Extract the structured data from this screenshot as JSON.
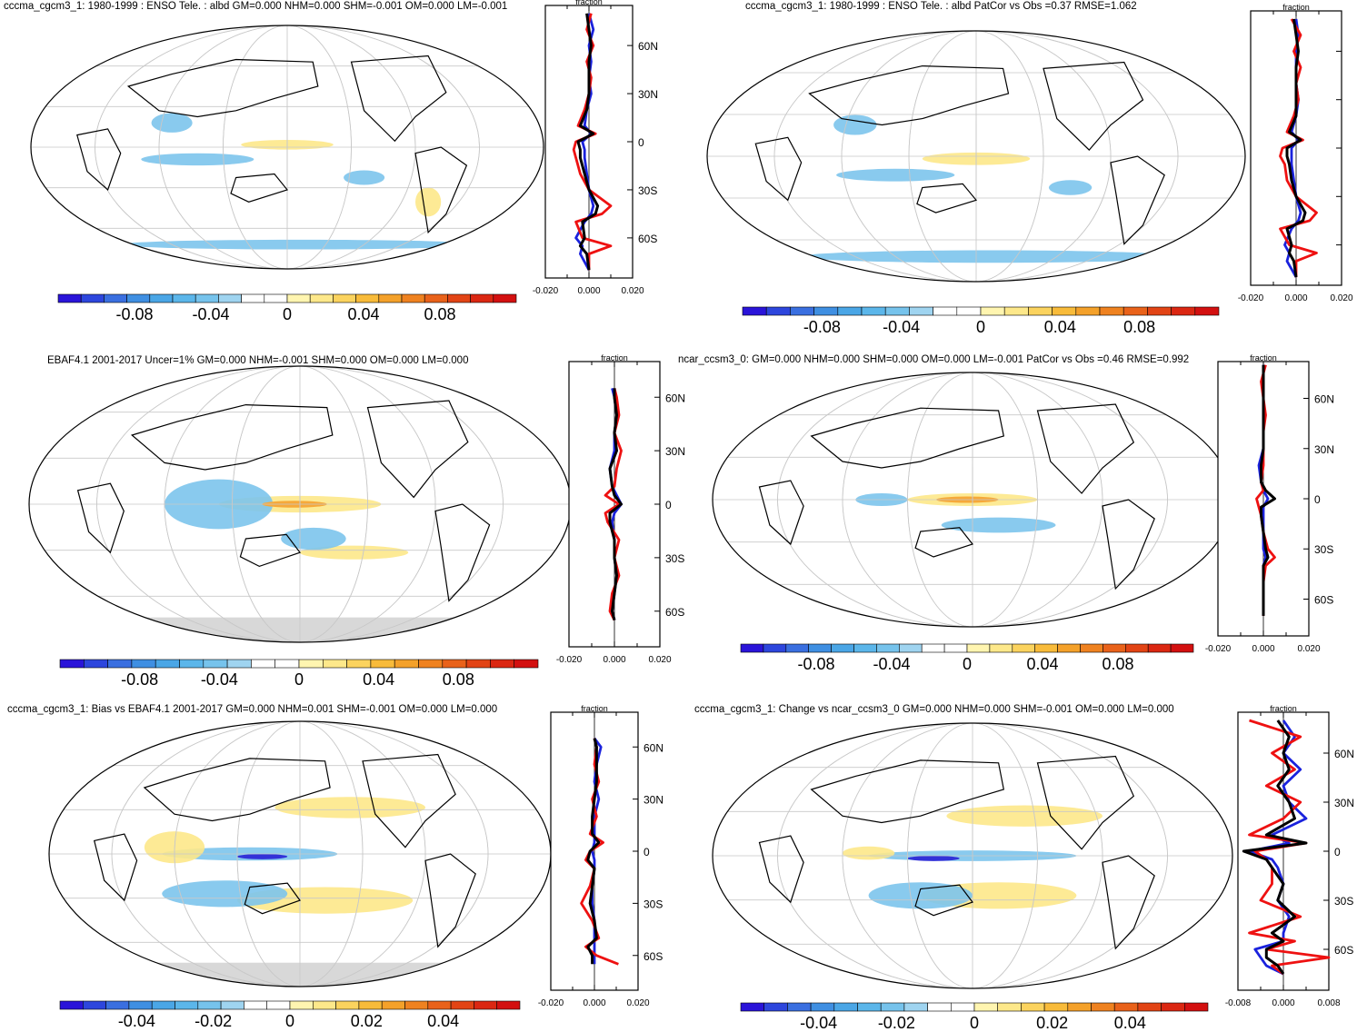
{
  "figure": {
    "panels": [
      {
        "id": "p1",
        "title": "cccma_cgcm3_1: 1980-1999 : ENSO Tele. : albd GM=0.000 NHM=0.000 SHM=-0.001 OM=0.000 LM=-0.001",
        "colorbar_ticks": [
          "-0.08",
          "-0.04",
          "0",
          "0.04",
          "0.08"
        ],
        "profile": {
          "xlabel_top": "fraction",
          "xticks": [
            "-0.020",
            "0.000",
            "0.020"
          ],
          "xrange": [
            -0.02,
            0.02
          ],
          "yticks": [
            "60N",
            "30N",
            "0",
            "30S",
            "60S"
          ]
        }
      },
      {
        "id": "p2",
        "title": "cccma_cgcm3_1: 1980-1999 : ENSO Tele. : albd PatCor vs Obs =0.37 RMSE=1.062",
        "colorbar_ticks": [
          "-0.08",
          "-0.04",
          "0",
          "0.04",
          "0.08"
        ],
        "profile": {
          "xlabel_top": "fraction",
          "xticks": [
            "-0.020",
            "0.000",
            "0.020"
          ],
          "xrange": [
            -0.02,
            0.02
          ],
          "yticks": [
            "",
            "",
            "",
            "",
            ""
          ]
        }
      },
      {
        "id": "p3",
        "title": "EBAF4.1 2001-2017 Uncer=1% GM=0.000 NHM=-0.001 SHM=0.000 OM=0.000 LM=0.000",
        "colorbar_ticks": [
          "-0.08",
          "-0.04",
          "0",
          "0.04",
          "0.08"
        ],
        "profile": {
          "xlabel_top": "fraction",
          "xticks": [
            "-0.020",
            "0.000",
            "0.020"
          ],
          "xrange": [
            -0.02,
            0.02
          ],
          "yticks": [
            "60N",
            "30N",
            "0",
            "30S",
            "60S"
          ]
        }
      },
      {
        "id": "p4",
        "title": "ncar_ccsm3_0: GM=0.000 NHM=0.000 SHM=0.000 OM=0.000 LM=-0.001 PatCor vs Obs =0.46 RMSE=0.992",
        "colorbar_ticks": [
          "-0.08",
          "-0.04",
          "0",
          "0.04",
          "0.08"
        ],
        "profile": {
          "xlabel_top": "fraction",
          "xticks": [
            "-0.020",
            "0.000",
            "0.020"
          ],
          "xrange": [
            -0.02,
            0.02
          ],
          "yticks": [
            "60N",
            "30N",
            "0",
            "30S",
            "60S"
          ]
        }
      },
      {
        "id": "p5",
        "title": "cccma_cgcm3_1: Bias vs EBAF4.1 2001-2017 GM=0.000 NHM=0.001 SHM=-0.001 OM=0.000 LM=0.000",
        "colorbar_ticks": [
          "-0.04",
          "-0.02",
          "0",
          "0.02",
          "0.04"
        ],
        "profile": {
          "xlabel_top": "fraction",
          "xticks": [
            "-0.020",
            "0.000",
            "0.020"
          ],
          "xrange": [
            -0.02,
            0.02
          ],
          "yticks": [
            "60N",
            "30N",
            "0",
            "30S",
            "60S"
          ]
        }
      },
      {
        "id": "p6",
        "title": "cccma_cgcm3_1: Change vs ncar_ccsm3_0 GM=0.000 NHM=0.000 SHM=-0.001 OM=0.000 LM=0.000",
        "colorbar_ticks": [
          "-0.04",
          "-0.02",
          "0",
          "0.02",
          "0.04"
        ],
        "profile": {
          "xlabel_top": "fraction",
          "xticks": [
            "-0.008",
            "0.000",
            "0.008"
          ],
          "xrange": [
            -0.008,
            0.008
          ],
          "yticks": [
            "60N",
            "30N",
            "0",
            "30S",
            "60S"
          ]
        }
      }
    ]
  },
  "colors": {
    "colorbar": [
      "#2a14d9",
      "#2d46dd",
      "#3a6fe0",
      "#3f8fe2",
      "#4aa6e6",
      "#5bb6ea",
      "#76c3ec",
      "#9fd4f0",
      "#ffffff",
      "#ffffff",
      "#fff5b0",
      "#fde88a",
      "#fbd35e",
      "#f8bb3a",
      "#f4a12a",
      "#ef8220",
      "#e9621a",
      "#e24415",
      "#db2712",
      "#d31010"
    ],
    "ocean_warm": "#fde88a",
    "ocean_cool": "#7cc4ec",
    "missing": "#d8d8d8",
    "line_red": "#ee1111",
    "line_blue": "#1a22dd",
    "line_black": "#000000"
  },
  "chart_data": [
    {
      "panel": "p1",
      "type": "line",
      "series": [
        {
          "name": "red",
          "lat": [
            80,
            70,
            60,
            50,
            40,
            30,
            20,
            10,
            5,
            0,
            -5,
            -10,
            -20,
            -30,
            -40,
            -45,
            -50,
            -60,
            -65,
            -70,
            -80
          ],
          "values": [
            0.001,
            -0.001,
            0.002,
            -0.001,
            0.001,
            0.0,
            -0.002,
            -0.005,
            0.003,
            -0.006,
            -0.007,
            -0.006,
            -0.004,
            0.0,
            0.01,
            0.006,
            -0.006,
            -0.003,
            0.01,
            0.0,
            0.0
          ]
        },
        {
          "name": "blue",
          "lat": [
            80,
            70,
            60,
            50,
            40,
            30,
            20,
            10,
            5,
            0,
            -5,
            -10,
            -20,
            -30,
            -40,
            -45,
            -50,
            -60,
            -65,
            -70,
            -80
          ],
          "values": [
            0.0,
            0.002,
            0.0,
            0.001,
            0.0,
            0.001,
            -0.001,
            -0.002,
            0.001,
            -0.003,
            -0.002,
            -0.002,
            -0.001,
            0.0,
            0.002,
            0.001,
            -0.002,
            -0.006,
            -0.003,
            -0.004,
            0.0
          ]
        },
        {
          "name": "black",
          "lat": [
            80,
            70,
            60,
            50,
            40,
            30,
            20,
            10,
            5,
            0,
            -5,
            -10,
            -20,
            -30,
            -40,
            -45,
            -50,
            -60,
            -65,
            -70,
            -80
          ],
          "values": [
            -0.001,
            0.0,
            0.001,
            0.0,
            0.0,
            0.0,
            -0.001,
            -0.004,
            0.002,
            -0.005,
            -0.004,
            -0.004,
            -0.002,
            0.0,
            0.004,
            0.003,
            -0.003,
            -0.002,
            -0.004,
            -0.001,
            0.0
          ]
        }
      ]
    },
    {
      "panel": "p2",
      "type": "line",
      "series": [
        {
          "name": "red",
          "lat": [
            80,
            70,
            60,
            50,
            40,
            30,
            20,
            10,
            5,
            0,
            -5,
            -10,
            -20,
            -30,
            -40,
            -45,
            -50,
            -60,
            -65,
            -70,
            -80
          ],
          "values": [
            -0.002,
            0.002,
            -0.001,
            0.002,
            0.0,
            0.001,
            -0.001,
            -0.004,
            0.003,
            -0.006,
            -0.007,
            -0.005,
            -0.004,
            0.0,
            0.009,
            0.006,
            -0.007,
            -0.003,
            0.009,
            0.0,
            0.0
          ]
        },
        {
          "name": "blue",
          "lat": [
            80,
            70,
            60,
            50,
            40,
            30,
            20,
            10,
            5,
            0,
            -5,
            -10,
            -20,
            -30,
            -40,
            -45,
            -50,
            -60,
            -65,
            -70,
            -80
          ],
          "values": [
            0.0,
            0.001,
            0.0,
            0.0,
            0.0,
            0.001,
            0.0,
            -0.002,
            0.001,
            -0.002,
            -0.002,
            -0.002,
            -0.001,
            0.0,
            0.002,
            0.001,
            -0.002,
            -0.005,
            -0.003,
            -0.004,
            0.0
          ]
        },
        {
          "name": "black",
          "lat": [
            80,
            70,
            60,
            50,
            40,
            30,
            20,
            10,
            5,
            0,
            -5,
            -10,
            -20,
            -30,
            -40,
            -45,
            -50,
            -60,
            -65,
            -70,
            -80
          ],
          "values": [
            -0.001,
            0.0,
            0.001,
            0.0,
            0.0,
            0.0,
            0.0,
            -0.003,
            0.002,
            -0.004,
            -0.004,
            -0.003,
            -0.002,
            0.0,
            0.004,
            0.003,
            -0.004,
            -0.002,
            -0.003,
            -0.001,
            0.0
          ]
        }
      ]
    },
    {
      "panel": "p3",
      "type": "line",
      "series": [
        {
          "name": "red",
          "lat": [
            65,
            60,
            50,
            40,
            30,
            20,
            10,
            5,
            0,
            -5,
            -10,
            -20,
            -30,
            -40,
            -50,
            -60,
            -65
          ],
          "values": [
            0.0,
            0.001,
            0.002,
            0.0,
            0.003,
            0.001,
            0.0,
            -0.004,
            0.002,
            -0.004,
            -0.003,
            0.002,
            0.0,
            0.002,
            -0.001,
            -0.002,
            0.0
          ]
        },
        {
          "name": "blue",
          "lat": [
            65,
            60,
            50,
            40,
            30,
            20,
            10,
            5,
            0,
            -5,
            -10,
            -20,
            -30,
            -40,
            -50,
            -60,
            -65
          ],
          "values": [
            -0.001,
            0.0,
            0.001,
            0.0,
            0.0,
            -0.002,
            -0.001,
            0.001,
            0.003,
            0.0,
            -0.001,
            0.0,
            0.0,
            0.001,
            0.0,
            -0.001,
            0.0
          ]
        },
        {
          "name": "black",
          "lat": [
            65,
            60,
            50,
            40,
            30,
            20,
            10,
            5,
            0,
            -5,
            -10,
            -20,
            -30,
            -40,
            -50,
            -60,
            -65
          ],
          "values": [
            0.0,
            0.0,
            0.001,
            0.0,
            0.001,
            -0.002,
            -0.001,
            0.0,
            0.003,
            -0.002,
            -0.002,
            0.0,
            0.0,
            0.001,
            0.0,
            -0.001,
            0.0
          ]
        }
      ]
    },
    {
      "panel": "p4",
      "type": "line",
      "series": [
        {
          "name": "red",
          "lat": [
            80,
            70,
            60,
            50,
            40,
            30,
            20,
            10,
            5,
            0,
            -5,
            -10,
            -20,
            -30,
            -35,
            -40,
            -50,
            -60,
            -70
          ],
          "values": [
            0.001,
            -0.001,
            0.0,
            0.001,
            0.0,
            0.0,
            0.0,
            -0.001,
            0.0,
            -0.003,
            -0.002,
            -0.001,
            0.0,
            0.002,
            0.005,
            0.001,
            0.0,
            0.0,
            0.0
          ]
        },
        {
          "name": "blue",
          "lat": [
            80,
            70,
            60,
            50,
            40,
            30,
            20,
            10,
            5,
            0,
            -5,
            -10,
            -20,
            -30,
            -35,
            -40,
            -50,
            -60,
            -70
          ],
          "values": [
            0.0,
            0.0,
            0.0,
            0.0,
            0.0,
            0.0,
            -0.002,
            -0.001,
            0.0,
            0.002,
            0.0,
            0.0,
            0.0,
            0.0,
            0.001,
            0.0,
            0.0,
            0.0,
            0.0
          ]
        },
        {
          "name": "black",
          "lat": [
            80,
            70,
            60,
            50,
            40,
            30,
            20,
            10,
            5,
            0,
            -5,
            -10,
            -20,
            -30,
            -35,
            -40,
            -50,
            -60,
            -70
          ],
          "values": [
            0.0,
            0.0,
            0.0,
            0.0,
            0.0,
            0.0,
            -0.001,
            -0.001,
            0.001,
            0.005,
            -0.001,
            -0.001,
            0.0,
            0.001,
            0.002,
            0.0,
            0.0,
            0.0,
            0.0
          ]
        }
      ]
    },
    {
      "panel": "p5",
      "type": "line",
      "series": [
        {
          "name": "red",
          "lat": [
            65,
            60,
            50,
            40,
            30,
            20,
            10,
            5,
            0,
            -5,
            -10,
            -20,
            -30,
            -40,
            -50,
            -55,
            -60,
            -65
          ],
          "values": [
            0.0,
            0.001,
            0.0,
            0.002,
            -0.001,
            0.001,
            -0.002,
            0.004,
            -0.002,
            -0.004,
            0.0,
            -0.002,
            -0.006,
            -0.001,
            0.002,
            -0.004,
            0.001,
            0.011
          ]
        },
        {
          "name": "blue",
          "lat": [
            65,
            60,
            50,
            40,
            30,
            20,
            10,
            5,
            0,
            -5,
            -10,
            -20,
            -30,
            -40,
            -50,
            -55,
            -60,
            -65
          ],
          "values": [
            0.0,
            0.003,
            0.001,
            0.0,
            0.002,
            0.0,
            0.0,
            0.0,
            -0.001,
            0.0,
            0.0,
            -0.001,
            -0.001,
            0.0,
            0.0,
            0.0,
            0.0,
            0.0
          ]
        },
        {
          "name": "black",
          "lat": [
            65,
            60,
            50,
            40,
            30,
            20,
            10,
            5,
            0,
            -5,
            -10,
            -20,
            -30,
            -40,
            -50,
            -55,
            -60,
            -65
          ],
          "values": [
            0.0,
            0.001,
            0.001,
            0.001,
            0.0,
            -0.001,
            -0.001,
            0.002,
            -0.002,
            -0.003,
            0.0,
            -0.001,
            -0.002,
            0.0,
            0.001,
            -0.003,
            -0.001,
            -0.001
          ]
        }
      ]
    },
    {
      "panel": "p6",
      "type": "line",
      "series": [
        {
          "name": "red",
          "lat": [
            80,
            70,
            60,
            50,
            40,
            30,
            20,
            10,
            5,
            0,
            -5,
            -10,
            -20,
            -30,
            -40,
            -50,
            -55,
            -60,
            -65,
            -70,
            -75
          ],
          "values": [
            -0.006,
            0.003,
            -0.002,
            0.002,
            -0.003,
            0.003,
            0.0,
            -0.006,
            0.004,
            -0.005,
            -0.003,
            -0.002,
            -0.002,
            -0.004,
            0.003,
            -0.006,
            0.002,
            -0.003,
            0.008,
            -0.002,
            0.0
          ]
        },
        {
          "name": "blue",
          "lat": [
            80,
            70,
            60,
            50,
            40,
            30,
            20,
            10,
            5,
            0,
            -5,
            -10,
            -20,
            -30,
            -40,
            -50,
            -55,
            -60,
            -65,
            -70,
            -75
          ],
          "values": [
            0.0,
            0.002,
            0.0,
            0.003,
            0.0,
            0.001,
            0.004,
            -0.002,
            0.001,
            -0.006,
            -0.002,
            -0.001,
            0.0,
            -0.001,
            0.001,
            0.0,
            0.0,
            -0.005,
            -0.004,
            -0.003,
            0.0
          ]
        },
        {
          "name": "black",
          "lat": [
            80,
            70,
            60,
            50,
            40,
            30,
            20,
            10,
            5,
            0,
            -5,
            -10,
            -20,
            -30,
            -40,
            -50,
            -55,
            -60,
            -65,
            -70,
            -75
          ],
          "values": [
            -0.001,
            0.001,
            0.0,
            0.001,
            -0.001,
            0.001,
            0.002,
            -0.003,
            0.004,
            -0.007,
            -0.003,
            -0.002,
            0.0,
            -0.001,
            0.002,
            -0.002,
            0.0,
            -0.003,
            -0.003,
            -0.001,
            0.0
          ]
        }
      ]
    }
  ]
}
